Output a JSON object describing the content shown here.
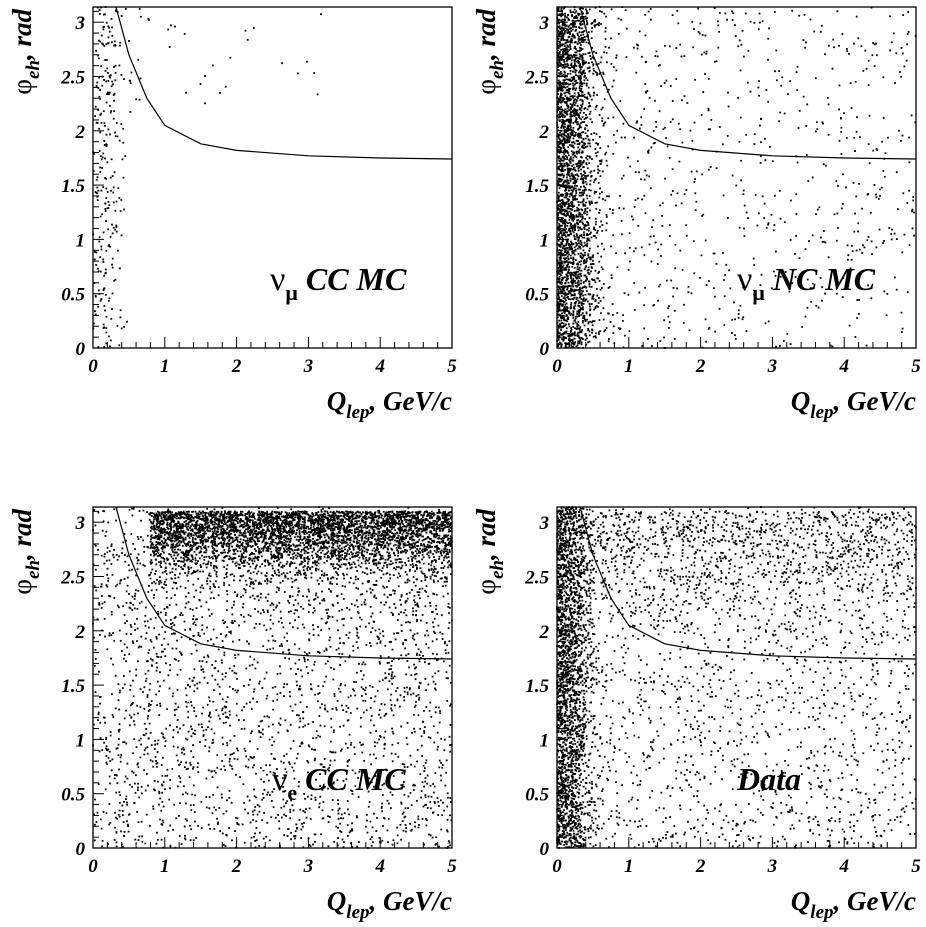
{
  "chart_data": [
    {
      "type": "scatter",
      "title": "",
      "xlabel": "Q_lep, GeV/c",
      "ylabel": "φ_eh, rad",
      "xlim": [
        0,
        5
      ],
      "ylim": [
        0,
        3.14
      ],
      "x_ticks": [
        "0",
        "1",
        "2",
        "3",
        "4",
        "5"
      ],
      "y_ticks": [
        "0",
        "0.5",
        "1",
        "1.5",
        "2",
        "2.5",
        "3"
      ],
      "label_symbol": "ν",
      "label_sub": "μ",
      "label_text": "CC MC",
      "cut_curve": {
        "x": [
          0.32,
          0.5,
          0.75,
          1.0,
          1.5,
          2.0,
          3.0,
          4.0,
          5.0
        ],
        "y": [
          3.14,
          2.7,
          2.3,
          2.05,
          1.88,
          1.82,
          1.77,
          1.75,
          1.74
        ]
      },
      "population": {
        "description_free": true,
        "bulk": {
          "n": 260,
          "x_mean": 0.18,
          "x_sigma": 0.12,
          "y_min": 0.0,
          "y_max": 3.14
        },
        "tail": {
          "n": 35,
          "x_min": 0.5,
          "x_max": 3.3,
          "y_min": 2.2,
          "y_max": 3.14
        }
      }
    },
    {
      "type": "scatter",
      "title": "",
      "xlabel": "Q_lep, GeV/c",
      "ylabel": "φ_eh, rad",
      "xlim": [
        0,
        5
      ],
      "ylim": [
        0,
        3.14
      ],
      "x_ticks": [
        "0",
        "1",
        "2",
        "3",
        "4",
        "5"
      ],
      "y_ticks": [
        "0",
        "0.5",
        "1",
        "1.5",
        "2",
        "2.5",
        "3"
      ],
      "label_symbol": "ν",
      "label_sub": "μ",
      "label_text": "NC MC",
      "cut_curve": {
        "x": [
          0.32,
          0.5,
          0.75,
          1.0,
          1.5,
          2.0,
          3.0,
          4.0,
          5.0
        ],
        "y": [
          3.14,
          2.7,
          2.3,
          2.05,
          1.88,
          1.82,
          1.77,
          1.75,
          1.74
        ]
      },
      "population": {
        "bulk": {
          "n": 2600,
          "x_mean": 0.15,
          "x_sigma": 0.2,
          "y_min": 0.0,
          "y_max": 3.14
        },
        "tail": {
          "n": 900,
          "x_min": 0.3,
          "x_max": 5.0,
          "y_min": 0.0,
          "y_max": 3.14
        }
      }
    },
    {
      "type": "scatter",
      "title": "",
      "xlabel": "Q_lep, GeV/c",
      "ylabel": "φ_eh, rad",
      "xlim": [
        0,
        5
      ],
      "ylim": [
        0,
        3.14
      ],
      "x_ticks": [
        "0",
        "1",
        "2",
        "3",
        "4",
        "5"
      ],
      "y_ticks": [
        "0",
        "0.5",
        "1",
        "1.5",
        "2",
        "2.5",
        "3"
      ],
      "label_symbol": "ν",
      "label_sub": "e",
      "label_text": "CC MC",
      "cut_curve": {
        "x": [
          0.32,
          0.5,
          0.75,
          1.0,
          1.5,
          2.0,
          3.0,
          4.0,
          5.0
        ],
        "y": [
          3.14,
          2.7,
          2.3,
          2.05,
          1.88,
          1.82,
          1.77,
          1.75,
          1.74
        ]
      },
      "population": {
        "top_band": {
          "n": 4200,
          "x_min": 0.8,
          "x_max": 5.0,
          "y_peak": 3.1,
          "y_sigma": 0.28
        },
        "uniform": {
          "n": 2700,
          "x_min": 0.0,
          "x_max": 5.0,
          "y_min": 0.0,
          "y_max": 3.14
        }
      }
    },
    {
      "type": "scatter",
      "title": "",
      "xlabel": "Q_lep, GeV/c",
      "ylabel": "φ_eh, rad",
      "xlim": [
        0,
        5
      ],
      "ylim": [
        0,
        3.14
      ],
      "x_ticks": [
        "0",
        "1",
        "2",
        "3",
        "4",
        "5"
      ],
      "y_ticks": [
        "0",
        "0.5",
        "1",
        "1.5",
        "2",
        "2.5",
        "3"
      ],
      "label_symbol": "",
      "label_sub": "",
      "label_text": "Data",
      "cut_curve": {
        "x": [
          0.32,
          0.5,
          0.75,
          1.0,
          1.5,
          2.0,
          3.0,
          4.0,
          5.0
        ],
        "y": [
          3.14,
          2.7,
          2.3,
          2.05,
          1.88,
          1.82,
          1.77,
          1.75,
          1.74
        ]
      },
      "population": {
        "bulk": {
          "n": 2300,
          "x_mean": 0.15,
          "x_sigma": 0.18,
          "y_min": 0.0,
          "y_max": 3.14
        },
        "top_band": {
          "n": 900,
          "x_min": 0.3,
          "x_max": 5.0,
          "y_peak": 3.1,
          "y_sigma": 0.5
        },
        "uniform": {
          "n": 1700,
          "x_min": 0.3,
          "x_max": 5.0,
          "y_min": 0.0,
          "y_max": 3.14
        }
      }
    }
  ]
}
